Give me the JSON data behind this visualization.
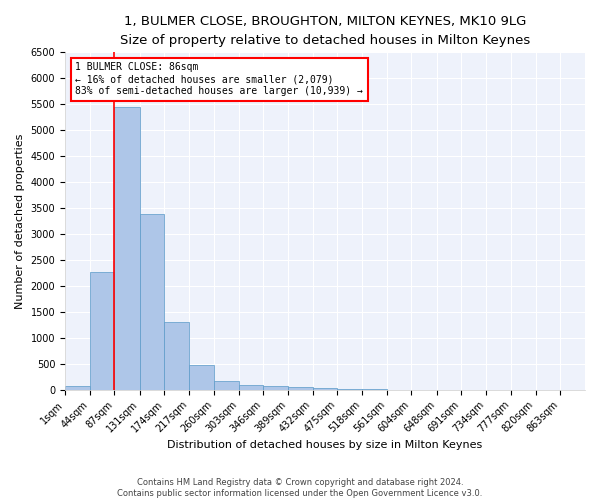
{
  "title1": "1, BULMER CLOSE, BROUGHTON, MILTON KEYNES, MK10 9LG",
  "title2": "Size of property relative to detached houses in Milton Keynes",
  "xlabel": "Distribution of detached houses by size in Milton Keynes",
  "ylabel": "Number of detached properties",
  "footnote1": "Contains HM Land Registry data © Crown copyright and database right 2024.",
  "footnote2": "Contains public sector information licensed under the Open Government Licence v3.0.",
  "annotation_title": "1 BULMER CLOSE: 86sqm",
  "annotation_line1": "← 16% of detached houses are smaller (2,079)",
  "annotation_line2": "83% of semi-detached houses are larger (10,939) →",
  "property_size": 86,
  "bar_labels": [
    "1sqm",
    "44sqm",
    "87sqm",
    "131sqm",
    "174sqm",
    "217sqm",
    "260sqm",
    "303sqm",
    "346sqm",
    "389sqm",
    "432sqm",
    "475sqm",
    "518sqm",
    "561sqm",
    "604sqm",
    "648sqm",
    "691sqm",
    "734sqm",
    "777sqm",
    "820sqm",
    "863sqm"
  ],
  "bar_edges": [
    1,
    44,
    87,
    131,
    174,
    217,
    260,
    303,
    346,
    389,
    432,
    475,
    518,
    561,
    604,
    648,
    691,
    734,
    777,
    820,
    863,
    906
  ],
  "bar_values": [
    70,
    2270,
    5450,
    3380,
    1300,
    480,
    170,
    90,
    70,
    50,
    30,
    20,
    10,
    0,
    0,
    0,
    0,
    0,
    0,
    0,
    0
  ],
  "bar_color": "#aec6e8",
  "bar_edge_color": "#5a9ac8",
  "vline_color": "red",
  "vline_x": 86,
  "annotation_box_color": "red",
  "background_color": "#eef2fb",
  "grid_color": "#ffffff",
  "ylim": [
    0,
    6500
  ],
  "yticks": [
    0,
    500,
    1000,
    1500,
    2000,
    2500,
    3000,
    3500,
    4000,
    4500,
    5000,
    5500,
    6000,
    6500
  ],
  "title1_fontsize": 9.5,
  "title2_fontsize": 8.5,
  "xlabel_fontsize": 8,
  "ylabel_fontsize": 8,
  "tick_fontsize": 7,
  "annotation_fontsize": 7,
  "footnote_fontsize": 6
}
